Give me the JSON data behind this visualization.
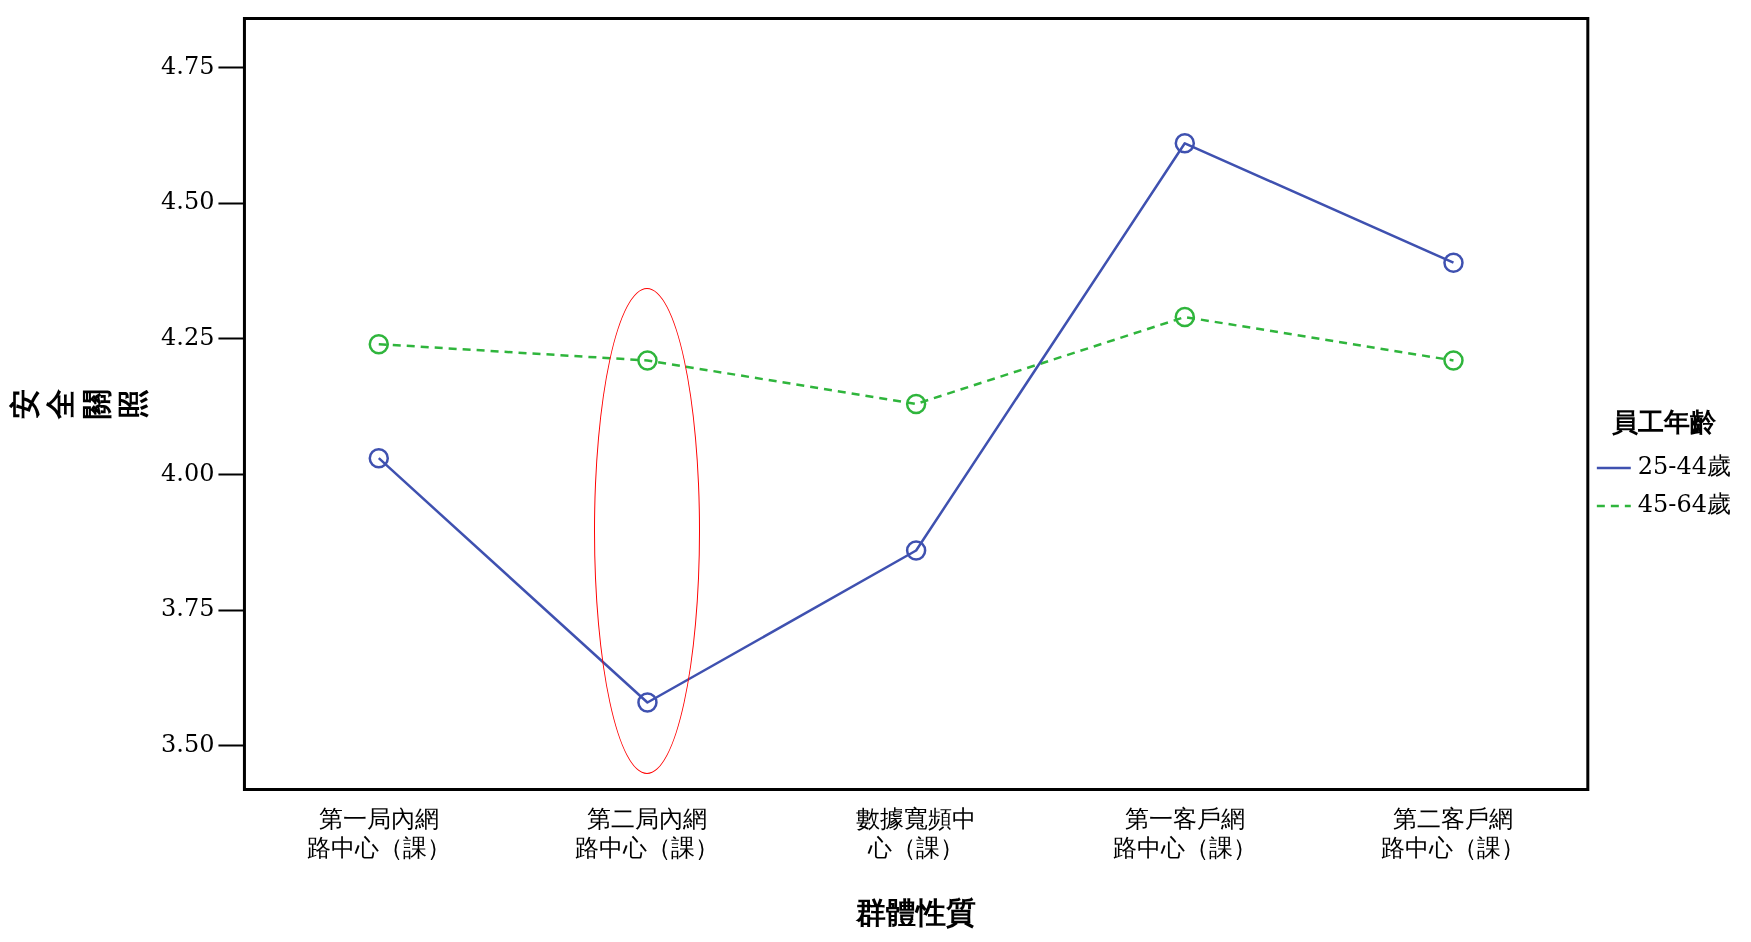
{
  "chart_data": {
    "type": "line",
    "xlabel": "群體性質",
    "ylabel": "安全關照",
    "legend_title": "員工年齡",
    "categories": [
      "第一局內網路中心（課）",
      "第二局內網路中心（課）",
      "數據寬頻中心（課）",
      "第一客戶網路中心（課）",
      "第二客戶網路中心（課）"
    ],
    "series": [
      {
        "name": "25-44歲",
        "color": "#3f51b0",
        "values": [
          4.03,
          3.58,
          3.86,
          4.61,
          4.39
        ],
        "line_style": "solid"
      },
      {
        "name": "45-64歲",
        "color": "#2fb53c",
        "values": [
          4.24,
          4.21,
          4.13,
          4.29,
          4.21
        ],
        "line_style": "dashed"
      }
    ],
    "ylim": [
      3.42,
      4.84
    ],
    "yticks": [
      {
        "value": 3.5,
        "label": "3.50"
      },
      3.75,
      {
        "value": 4.0,
        "label": "4.00"
      },
      4.25,
      {
        "value": 4.5,
        "label": "4.50"
      },
      4.75
    ],
    "grid": false,
    "legend": "right",
    "marker": "circle"
  }
}
